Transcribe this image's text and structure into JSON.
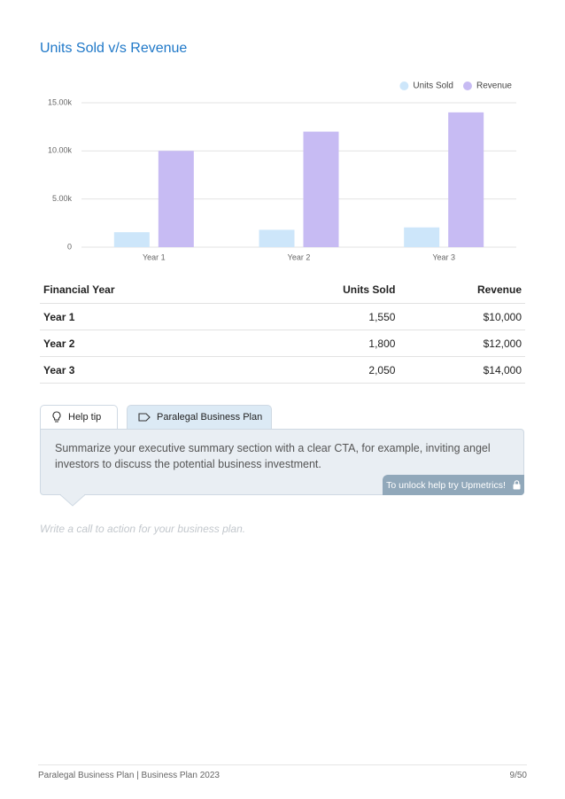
{
  "chart_data": {
    "type": "bar",
    "title": "Units Sold v/s Revenue",
    "categories": [
      "Year 1",
      "Year 2",
      "Year 3"
    ],
    "series": [
      {
        "name": "Units Sold",
        "color": "#cde6fa",
        "values": [
          1550,
          1800,
          2050
        ]
      },
      {
        "name": "Revenue",
        "color": "#c7bbf3",
        "values": [
          10000,
          12000,
          14000
        ]
      }
    ],
    "ylim": [
      0,
      15000
    ],
    "yticks": [
      0,
      {
        "value": 5000,
        "label": "5.00k"
      },
      {
        "value": 10000,
        "label": "10.00k"
      },
      {
        "value": 15000,
        "label": "15.00k"
      }
    ],
    "grid": true,
    "legend": "top-right"
  },
  "table": {
    "header": [
      "Financial Year",
      "Units Sold",
      "Revenue"
    ],
    "rows": [
      [
        "Year 1",
        "1,550",
        "$10,000"
      ],
      [
        "Year 2",
        "1,800",
        "$12,000"
      ],
      [
        "Year 3",
        "2,050",
        "$14,000"
      ]
    ]
  },
  "help_tip": {
    "tabs": [
      "Help tip",
      "Paralegal Business Plan"
    ],
    "text": "Summarize your executive summary section with a clear CTA, for example, inviting angel investors to discuss the potential business investment.",
    "unlock": "To unlock help try Upmetrics!"
  },
  "placeholder": "Write a call to action for your business plan.",
  "footer": {
    "left": "Paralegal Business Plan | Business Plan 2023",
    "page": "9/50"
  }
}
